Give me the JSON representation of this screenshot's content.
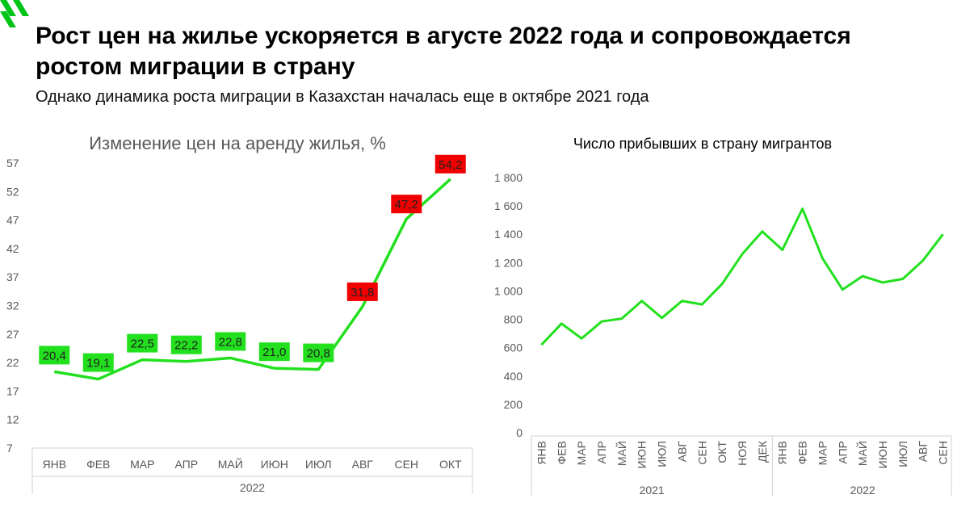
{
  "header": {
    "title": "Рост цен на жилье ускоряется в агусте 2022 года и сопровождается ростом миграции в страну",
    "subtitle": "Однако динамика роста миграции в Казахстан началась еще в октябре 2021 года"
  },
  "colors": {
    "brand": "#00c417",
    "line": "#22e01e",
    "label_high": "#f00000",
    "label_normal": "#22e01e"
  },
  "chart_data": [
    {
      "type": "line",
      "title": "Изменение цен на аренду жилья, %",
      "categories": [
        "ЯНВ",
        "ФЕВ",
        "МАР",
        "АПР",
        "МАЙ",
        "ИЮН",
        "ИЮЛ",
        "АВГ",
        "СЕН",
        "ОКТ"
      ],
      "year_group": "2022",
      "values": [
        20.4,
        19.1,
        22.5,
        22.2,
        22.8,
        21.0,
        20.8,
        31.8,
        47.2,
        54.2
      ],
      "data_labels": [
        "20,4",
        "19,1",
        "22,5",
        "22,2",
        "22,8",
        "21,0",
        "20,8",
        "31,8",
        "47,2",
        "54,2"
      ],
      "ylim": [
        7,
        57
      ],
      "yticks": [
        "57",
        "52",
        "47",
        "42",
        "37",
        "32",
        "27",
        "22",
        "17",
        "12",
        "7"
      ],
      "grid": false
    },
    {
      "type": "line",
      "title": "Число прибывших в страну мигрантов",
      "categories": [
        "ЯНВ",
        "ФЕВ",
        "МАР",
        "АПР",
        "МАЙ",
        "ИЮН",
        "ИЮЛ",
        "АВГ",
        "СЕН",
        "ОКТ",
        "НОЯ",
        "ДЕК",
        "ЯНВ",
        "ФЕВ",
        "МАР",
        "АПР",
        "МАЙ",
        "ИЮН",
        "ИЮЛ",
        "АВГ",
        "СЕН"
      ],
      "groups": [
        {
          "label": "2021",
          "count": 12
        },
        {
          "label": "2022",
          "count": 9
        }
      ],
      "values": [
        620,
        770,
        665,
        785,
        805,
        930,
        810,
        930,
        905,
        1050,
        1260,
        1420,
        1290,
        1580,
        1230,
        1010,
        1105,
        1060,
        1085,
        1215,
        1400
      ],
      "ylim": [
        0,
        1800
      ],
      "yticks": [
        "1 800",
        "1 600",
        "1 400",
        "1 200",
        "1 000",
        "800",
        "600",
        "400",
        "200",
        "0"
      ],
      "grid": false
    }
  ]
}
